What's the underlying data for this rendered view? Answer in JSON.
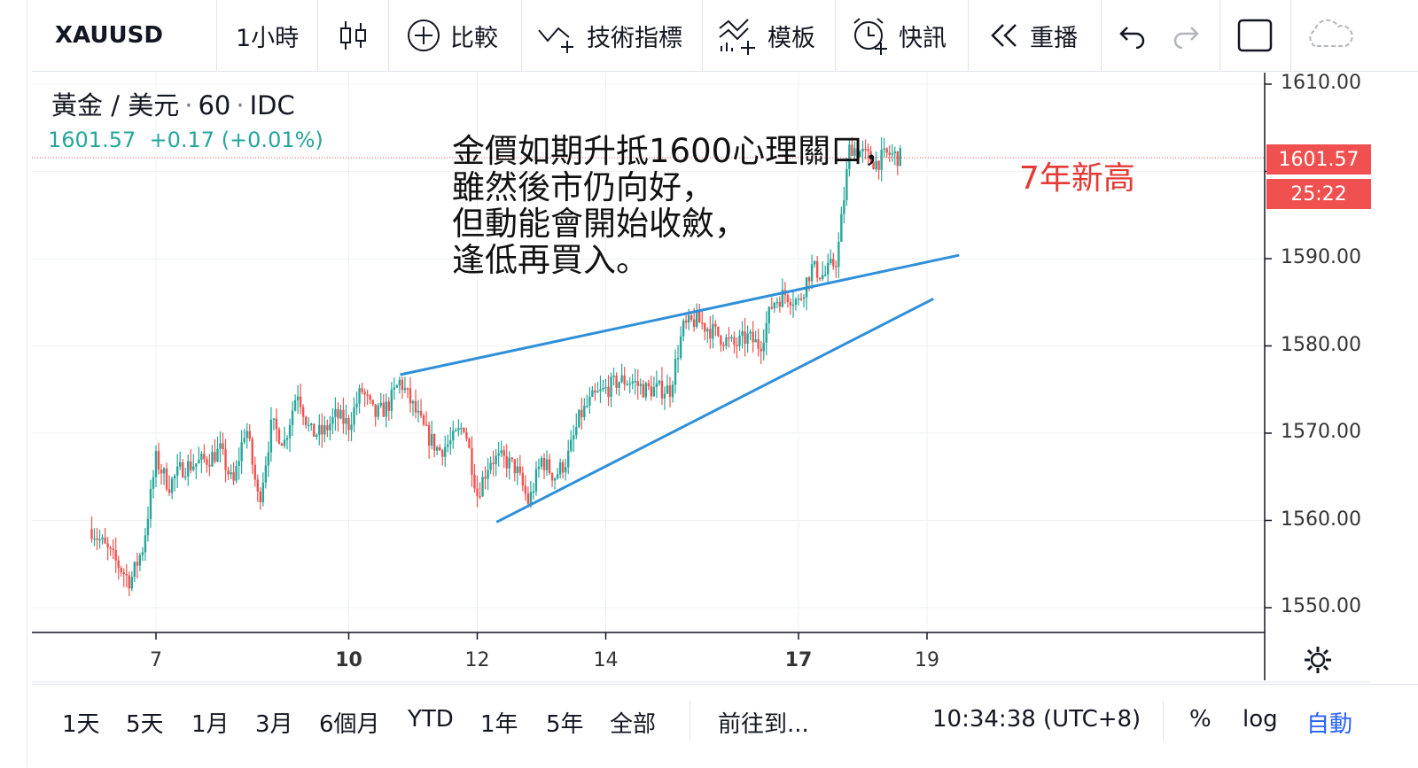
{
  "toolbar": {
    "symbol": "XAUUSD",
    "interval": "1小時",
    "compare": "比較",
    "indicators": "技術指標",
    "templates": "模板",
    "alerts": "快訊",
    "replay": "重播"
  },
  "legend": {
    "name": "黃金 / 美元",
    "interval": "60",
    "source": "IDC",
    "price": "1601.57",
    "change": "+0.17 (+0.01%)"
  },
  "note_lines": [
    "金價如期升抵1600心理關口，",
    "雖然後市仍向好，",
    "但動能會開始收斂，",
    "逢低再買入。"
  ],
  "annotation": "7年新高",
  "price_label": "1601.57",
  "countdown": "25:22",
  "bottom": {
    "ranges": [
      "1天",
      "5天",
      "1月",
      "3月",
      "6個月",
      "YTD",
      "1年",
      "5年",
      "全部"
    ],
    "goto": "前往到...",
    "time": "10:34:38 (UTC+8)",
    "percent": "%",
    "log": "log",
    "auto": "自動"
  },
  "colors": {
    "up": "#26a69a",
    "down": "#ef5350",
    "trendline": "#2f8fd8",
    "accent": "#2962ff"
  },
  "chart_data": {
    "type": "candlestick",
    "symbol": "XAUUSD",
    "interval": "60",
    "y_ticks": [
      1550,
      1560,
      1570,
      1580,
      1590,
      1600,
      1610
    ],
    "y_tick_labels": [
      "1550.00",
      "1560.00",
      "1570.00",
      "1580.00",
      "1590.00",
      "",
      "1610.00"
    ],
    "ylim": [
      1547,
      1612
    ],
    "x_ticks": [
      {
        "label": "7",
        "bold": false,
        "day": 7
      },
      {
        "label": "10",
        "bold": true,
        "day": 10
      },
      {
        "label": "12",
        "bold": false,
        "day": 12
      },
      {
        "label": "14",
        "bold": false,
        "day": 14
      },
      {
        "label": "17",
        "bold": true,
        "day": 17
      },
      {
        "label": "19",
        "bold": false,
        "day": 19
      }
    ],
    "last_price": 1601.57,
    "path": [
      [
        6.0,
        1559
      ],
      [
        6.2,
        1557
      ],
      [
        6.4,
        1555
      ],
      [
        6.6,
        1553
      ],
      [
        6.8,
        1557
      ],
      [
        7.0,
        1567
      ],
      [
        7.2,
        1564
      ],
      [
        7.4,
        1566
      ],
      [
        7.8,
        1567
      ],
      [
        8.0,
        1568
      ],
      [
        8.2,
        1564
      ],
      [
        8.4,
        1571
      ],
      [
        8.6,
        1562
      ],
      [
        8.8,
        1571
      ],
      [
        9.0,
        1569
      ],
      [
        9.2,
        1575
      ],
      [
        9.4,
        1570
      ],
      [
        9.6,
        1570
      ],
      [
        9.8,
        1572
      ],
      [
        10.0,
        1571
      ],
      [
        10.2,
        1575
      ],
      [
        10.4,
        1572
      ],
      [
        10.6,
        1573
      ],
      [
        10.8,
        1576
      ],
      [
        11.0,
        1573
      ],
      [
        11.2,
        1570
      ],
      [
        11.4,
        1568
      ],
      [
        11.6,
        1569
      ],
      [
        11.8,
        1571
      ],
      [
        12.0,
        1563
      ],
      [
        12.2,
        1567
      ],
      [
        12.4,
        1567
      ],
      [
        12.6,
        1566
      ],
      [
        12.8,
        1562
      ],
      [
        13.0,
        1567
      ],
      [
        13.2,
        1565
      ],
      [
        13.4,
        1567
      ],
      [
        13.6,
        1572
      ],
      [
        13.8,
        1574
      ],
      [
        14.0,
        1575
      ],
      [
        14.2,
        1576
      ],
      [
        14.4,
        1576
      ],
      [
        14.6,
        1575
      ],
      [
        14.8,
        1575
      ],
      [
        15.0,
        1575
      ],
      [
        15.2,
        1582
      ],
      [
        15.4,
        1583
      ],
      [
        15.6,
        1582
      ],
      [
        15.8,
        1581
      ],
      [
        16.0,
        1580
      ],
      [
        16.2,
        1581
      ],
      [
        16.4,
        1580
      ],
      [
        16.6,
        1585
      ],
      [
        16.8,
        1586
      ],
      [
        17.0,
        1585
      ],
      [
        17.2,
        1589
      ],
      [
        17.4,
        1588
      ],
      [
        17.6,
        1590
      ],
      [
        17.8,
        1603
      ],
      [
        18.0,
        1602
      ],
      [
        18.2,
        1601
      ],
      [
        18.4,
        1602
      ],
      [
        18.6,
        1601.57
      ]
    ],
    "trendlines": [
      {
        "from": [
          10.8,
          1576.7
        ],
        "to": [
          19.5,
          1590.4
        ]
      },
      {
        "from": [
          12.3,
          1559.8
        ],
        "to": [
          19.1,
          1585.4
        ]
      }
    ]
  }
}
